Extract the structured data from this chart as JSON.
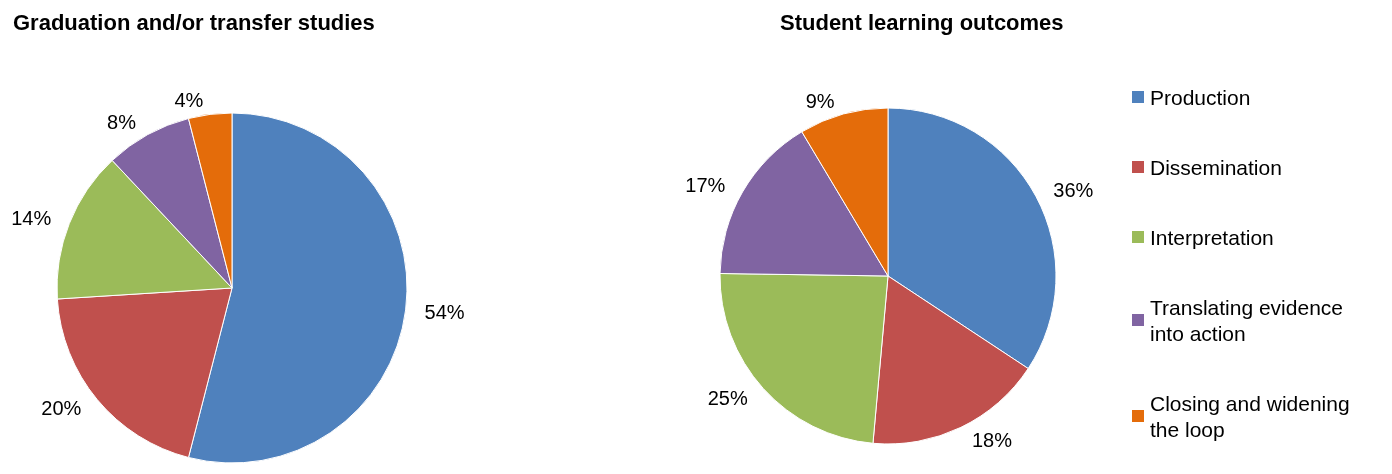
{
  "chart_data": [
    {
      "type": "pie",
      "title": "Graduation and/or transfer studies",
      "categories": [
        null,
        null,
        null,
        null,
        null
      ],
      "values": [
        54,
        20,
        14,
        8,
        4
      ],
      "value_labels": [
        "54%",
        "20%",
        "14%",
        "8%",
        "4%"
      ],
      "colors": [
        "#4f81bd",
        "#c0504d",
        "#9bbb59",
        "#8064a2",
        "#e46c0a"
      ],
      "legend": false
    },
    {
      "type": "pie",
      "title": "Student learning outcomes",
      "categories": [
        "Production",
        "Dissemination",
        "Interpretation",
        "Translating evidence into action",
        "Closing and widening the loop"
      ],
      "values": [
        36,
        18,
        25,
        17,
        9
      ],
      "value_labels": [
        "36%",
        "18%",
        "25%",
        "17%",
        "9%"
      ],
      "colors": [
        "#4f81bd",
        "#c0504d",
        "#9bbb59",
        "#8064a2",
        "#e46c0a"
      ],
      "legend": "right"
    }
  ]
}
